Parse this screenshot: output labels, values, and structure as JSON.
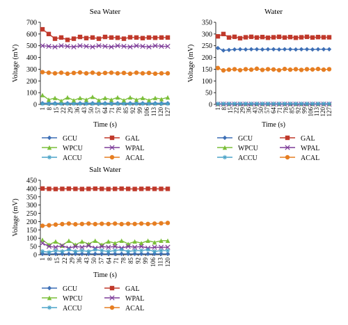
{
  "charts_order": [
    "sea",
    "water",
    "salt"
  ],
  "chart_data": [
    {
      "id": "sea",
      "type": "line",
      "title": "Sea Water",
      "xlabel": "Time (s)",
      "ylabel": "Voltage (mV)",
      "ylim": [
        0,
        700
      ],
      "yticks": [
        0,
        100,
        200,
        300,
        400,
        500,
        600,
        700
      ],
      "xticks": [
        "1",
        "8",
        "15",
        "22",
        "29",
        "36",
        "43",
        "50",
        "57",
        "64",
        "71",
        "78",
        "85",
        "92",
        "99",
        "106",
        "113",
        "120",
        "127"
      ],
      "xrange": [
        1,
        127
      ],
      "grid": false,
      "legend": "bottom",
      "series": [
        {
          "name": "GCU",
          "color": "#3d6fb6",
          "marker": "diamond",
          "values": [
            10,
            10,
            10,
            10,
            10,
            10,
            10,
            10,
            10,
            10,
            10,
            10,
            10,
            10,
            10,
            10,
            10,
            10,
            10,
            10,
            10
          ]
        },
        {
          "name": "GAL",
          "color": "#c0392b",
          "marker": "square",
          "values": [
            640,
            600,
            560,
            570,
            550,
            560,
            575,
            565,
            570,
            560,
            575,
            570,
            568,
            560,
            572,
            570,
            565,
            570,
            568,
            570,
            570
          ]
        },
        {
          "name": "WPCU",
          "color": "#7cbf3a",
          "marker": "triangle",
          "values": [
            80,
            40,
            55,
            30,
            60,
            35,
            55,
            40,
            65,
            35,
            55,
            40,
            60,
            35,
            60,
            40,
            55,
            35,
            55,
            45,
            60
          ]
        },
        {
          "name": "WPAL",
          "color": "#7d3c98",
          "marker": "x",
          "values": [
            500,
            495,
            490,
            500,
            495,
            490,
            500,
            495,
            490,
            500,
            495,
            490,
            500,
            495,
            490,
            500,
            495,
            490,
            500,
            495,
            495
          ]
        },
        {
          "name": "ACCU",
          "color": "#4aa3c8",
          "marker": "star",
          "values": [
            5,
            5,
            5,
            5,
            5,
            5,
            5,
            5,
            5,
            5,
            5,
            5,
            5,
            5,
            5,
            5,
            5,
            5,
            5,
            5,
            5
          ]
        },
        {
          "name": "ACAL",
          "color": "#e67e22",
          "marker": "circle",
          "values": [
            275,
            270,
            265,
            270,
            262,
            268,
            272,
            265,
            270,
            262,
            268,
            270,
            265,
            268,
            262,
            270,
            265,
            268,
            262,
            265,
            265
          ]
        }
      ]
    },
    {
      "id": "water",
      "type": "line",
      "title": "Water",
      "xlabel": "Time (s)",
      "ylabel": "Voltage (mV)",
      "ylim": [
        0,
        350
      ],
      "yticks": [
        0,
        50,
        100,
        150,
        200,
        250,
        300,
        350
      ],
      "xticks": [
        "1",
        "8",
        "15",
        "22",
        "29",
        "36",
        "43",
        "50",
        "57",
        "64",
        "71",
        "78",
        "85",
        "92",
        "99",
        "106",
        "113",
        "120",
        "127"
      ],
      "xrange": [
        1,
        127
      ],
      "grid": false,
      "legend": "bottom",
      "series": [
        {
          "name": "GCU",
          "color": "#3d6fb6",
          "marker": "diamond",
          "values": [
            240,
            230,
            232,
            234,
            235,
            234,
            235,
            235,
            234,
            235,
            235,
            234,
            235,
            235,
            234,
            235,
            235,
            234,
            235,
            235,
            235
          ]
        },
        {
          "name": "GAL",
          "color": "#c0392b",
          "marker": "square",
          "values": [
            290,
            300,
            285,
            288,
            282,
            286,
            288,
            285,
            287,
            284,
            286,
            288,
            285,
            287,
            284,
            286,
            288,
            285,
            287,
            286,
            286
          ]
        },
        {
          "name": "WPCU",
          "color": "#7cbf3a",
          "marker": "triangle",
          "values": [
            2,
            2,
            2,
            2,
            2,
            2,
            2,
            2,
            2,
            2,
            2,
            2,
            2,
            2,
            2,
            2,
            2,
            2,
            2,
            2,
            2
          ]
        },
        {
          "name": "WPAL",
          "color": "#7d3c98",
          "marker": "x",
          "values": [
            1,
            1,
            1,
            1,
            1,
            1,
            1,
            1,
            1,
            1,
            1,
            1,
            1,
            1,
            1,
            1,
            1,
            1,
            1,
            1,
            1
          ]
        },
        {
          "name": "ACCU",
          "color": "#4aa3c8",
          "marker": "star",
          "values": [
            3,
            3,
            3,
            3,
            3,
            3,
            3,
            3,
            3,
            3,
            3,
            3,
            3,
            3,
            3,
            3,
            3,
            3,
            3,
            3,
            3
          ]
        },
        {
          "name": "ACAL",
          "color": "#e67e22",
          "marker": "circle",
          "values": [
            155,
            145,
            148,
            150,
            146,
            150,
            148,
            152,
            147,
            150,
            149,
            146,
            151,
            148,
            150,
            147,
            150,
            149,
            151,
            148,
            150
          ]
        }
      ]
    },
    {
      "id": "salt",
      "type": "line",
      "title": "Salt Water",
      "xlabel": "Time (s)",
      "ylabel": "Voltage (mV)",
      "ylim": [
        0,
        450
      ],
      "yticks": [
        0,
        50,
        100,
        150,
        200,
        250,
        300,
        350,
        400,
        450
      ],
      "xticks": [
        "1",
        "8",
        "15",
        "22",
        "29",
        "36",
        "43",
        "50",
        "57",
        "64",
        "71",
        "78",
        "85",
        "92",
        "99",
        "106",
        "113",
        "120"
      ],
      "xrange": [
        1,
        120
      ],
      "grid": false,
      "legend": "bottom",
      "series": [
        {
          "name": "GCU",
          "color": "#3d6fb6",
          "marker": "diamond",
          "values": [
            5,
            5,
            5,
            5,
            5,
            5,
            5,
            5,
            5,
            5,
            5,
            5,
            5,
            5,
            5,
            5,
            5,
            5,
            5,
            5
          ]
        },
        {
          "name": "GAL",
          "color": "#c0392b",
          "marker": "square",
          "values": [
            400,
            398,
            397,
            398,
            399,
            398,
            397,
            398,
            399,
            398,
            397,
            398,
            399,
            398,
            397,
            398,
            399,
            398,
            398,
            398
          ]
        },
        {
          "name": "WPCU",
          "color": "#7cbf3a",
          "marker": "triangle",
          "values": [
            90,
            60,
            80,
            55,
            85,
            60,
            80,
            65,
            85,
            60,
            80,
            70,
            85,
            65,
            80,
            70,
            85,
            75,
            85,
            85
          ]
        },
        {
          "name": "WPAL",
          "color": "#7d3c98",
          "marker": "x",
          "values": [
            70,
            50,
            45,
            55,
            40,
            50,
            45,
            55,
            40,
            50,
            45,
            50,
            40,
            50,
            45,
            50,
            40,
            45,
            45,
            45
          ]
        },
        {
          "name": "ACCU",
          "color": "#4aa3c8",
          "marker": "star",
          "values": [
            20,
            15,
            25,
            20,
            30,
            20,
            25,
            20,
            30,
            25,
            20,
            25,
            30,
            20,
            25,
            25,
            30,
            20,
            25,
            25
          ]
        },
        {
          "name": "ACAL",
          "color": "#e67e22",
          "marker": "circle",
          "values": [
            175,
            178,
            182,
            185,
            188,
            184,
            186,
            188,
            185,
            187,
            186,
            188,
            185,
            187,
            186,
            188,
            186,
            188,
            190,
            192
          ]
        }
      ]
    }
  ]
}
